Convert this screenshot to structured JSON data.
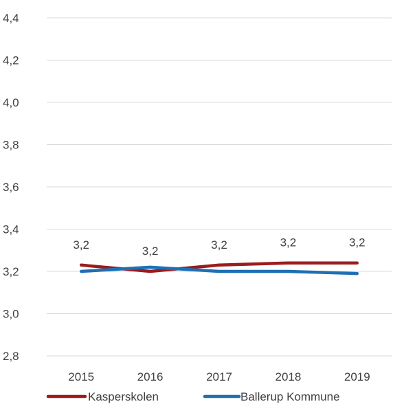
{
  "chart_data": {
    "type": "line",
    "title": "",
    "xlabel": "",
    "ylabel": "",
    "categories": [
      "2015",
      "2016",
      "2017",
      "2018",
      "2019"
    ],
    "ylim": [
      2.8,
      4.4
    ],
    "yticks": [
      "2,8",
      "3,0",
      "3,2",
      "3,4",
      "3,6",
      "3,8",
      "4,0",
      "4,2",
      "4,4"
    ],
    "grid": true,
    "legend_position": "bottom",
    "series": [
      {
        "name": "Kasperskolen",
        "values": [
          3.23,
          3.2,
          3.23,
          3.24,
          3.24
        ],
        "labels": [
          "3,2",
          "3,2",
          "3,2",
          "3,2",
          "3,2"
        ],
        "color": "#9b1c1f"
      },
      {
        "name": "Ballerup Kommune",
        "values": [
          3.2,
          3.22,
          3.2,
          3.2,
          3.19
        ],
        "color": "#1f6fb5"
      }
    ]
  }
}
